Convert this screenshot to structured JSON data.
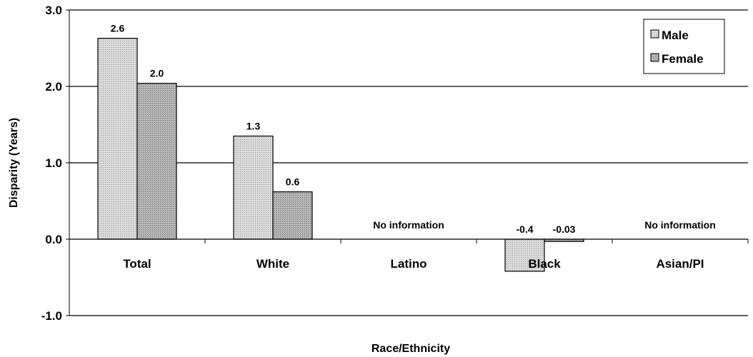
{
  "chart_data": {
    "type": "bar",
    "title": "",
    "xlabel": "Race/Ethnicity",
    "ylabel": "Disparity (Years)",
    "ylim": [
      -1.0,
      3.0
    ],
    "yticks": [
      "-1.0",
      "0.0",
      "1.0",
      "2.0",
      "3.0"
    ],
    "grid": true,
    "legend_position": "top-right",
    "categories": [
      "Total",
      "White",
      "Latino",
      "Black",
      "Asian/PI"
    ],
    "series": [
      {
        "name": "Male",
        "color": "#d4d4d4",
        "values": [
          2.63,
          1.35,
          null,
          -0.42,
          null
        ],
        "labels": [
          "2.6",
          "1.3",
          "",
          "-0.4",
          ""
        ]
      },
      {
        "name": "Female",
        "color": "#b4b4b4",
        "values": [
          2.04,
          0.62,
          null,
          -0.03,
          null
        ],
        "labels": [
          "2.0",
          "0.6",
          "",
          "-0.03",
          ""
        ]
      }
    ],
    "annotations": [
      "",
      "",
      "No information",
      "",
      "No information"
    ]
  }
}
